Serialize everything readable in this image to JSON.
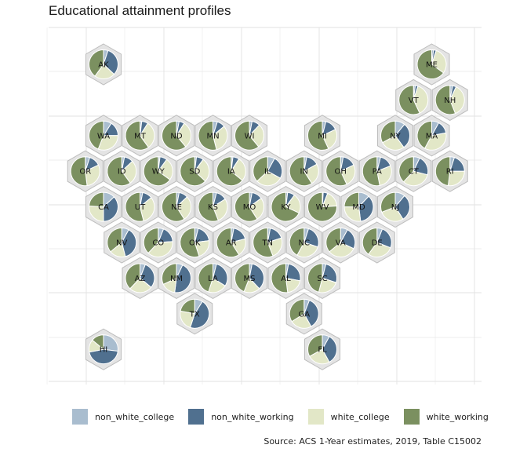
{
  "chart_data": {
    "type": "hexbin map of pie charts",
    "title": "Educational attainment profiles",
    "caption": "Source: ACS 1-Year estimates, 2019, Table C15002",
    "series": [
      {
        "name": "non_white_college",
        "color": "#a9bdcf"
      },
      {
        "name": "non_white_working",
        "color": "#50708f"
      },
      {
        "name": "white_college",
        "color": "#e2e7c7"
      },
      {
        "name": "white_working",
        "color": "#7b9060"
      }
    ],
    "grid": true,
    "legend_position": "bottom",
    "states": [
      {
        "abbr": "AK",
        "col": 0,
        "row": 0,
        "values": [
          5,
          32,
          23,
          40
        ]
      },
      {
        "abbr": "ME",
        "col": 9,
        "row": 0,
        "values": [
          2,
          3,
          30,
          65
        ]
      },
      {
        "abbr": "VT",
        "col": 8.5,
        "row": 1,
        "values": [
          2,
          3,
          38,
          57
        ]
      },
      {
        "abbr": "NH",
        "col": 9.5,
        "row": 1,
        "values": [
          3,
          4,
          37,
          56
        ]
      },
      {
        "abbr": "WA",
        "col": 0,
        "row": 2,
        "values": [
          9,
          16,
          31,
          44
        ]
      },
      {
        "abbr": "MT",
        "col": 1,
        "row": 2,
        "values": [
          2,
          7,
          31,
          60
        ]
      },
      {
        "abbr": "ND",
        "col": 2,
        "row": 2,
        "values": [
          3,
          6,
          30,
          61
        ]
      },
      {
        "abbr": "MN",
        "col": 3,
        "row": 2,
        "values": [
          5,
          9,
          32,
          54
        ]
      },
      {
        "abbr": "WI",
        "col": 4,
        "row": 2,
        "values": [
          3,
          9,
          27,
          61
        ]
      },
      {
        "abbr": "MI",
        "col": 6,
        "row": 2,
        "values": [
          4,
          14,
          25,
          57
        ]
      },
      {
        "abbr": "NY",
        "col": 8,
        "row": 2,
        "values": [
          11,
          29,
          27,
          33
        ]
      },
      {
        "abbr": "MA",
        "col": 9,
        "row": 2,
        "values": [
          8,
          14,
          36,
          42
        ]
      },
      {
        "abbr": "OR",
        "col": -0.5,
        "row": 3,
        "values": [
          5,
          13,
          30,
          52
        ]
      },
      {
        "abbr": "ID",
        "col": 0.5,
        "row": 3,
        "values": [
          3,
          10,
          27,
          60
        ]
      },
      {
        "abbr": "WY",
        "col": 1.5,
        "row": 3,
        "values": [
          2,
          8,
          25,
          65
        ]
      },
      {
        "abbr": "SD",
        "col": 2.5,
        "row": 3,
        "values": [
          2,
          8,
          27,
          63
        ]
      },
      {
        "abbr": "IA",
        "col": 3.5,
        "row": 3,
        "values": [
          2,
          7,
          27,
          64
        ]
      },
      {
        "abbr": "IL",
        "col": 4.5,
        "row": 3,
        "values": [
          8,
          25,
          30,
          37
        ]
      },
      {
        "abbr": "IN",
        "col": 5.5,
        "row": 3,
        "values": [
          3,
          14,
          24,
          59
        ]
      },
      {
        "abbr": "OH",
        "col": 6.5,
        "row": 3,
        "values": [
          3,
          15,
          25,
          57
        ]
      },
      {
        "abbr": "PA",
        "col": 7.5,
        "row": 3,
        "values": [
          4,
          15,
          28,
          53
        ]
      },
      {
        "abbr": "CT",
        "col": 8.5,
        "row": 3,
        "values": [
          7,
          22,
          33,
          38
        ]
      },
      {
        "abbr": "RI",
        "col": 9.5,
        "row": 3,
        "values": [
          5,
          20,
          27,
          48
        ]
      },
      {
        "abbr": "CA",
        "col": 0,
        "row": 4,
        "values": [
          13,
          37,
          26,
          24
        ]
      },
      {
        "abbr": "UT",
        "col": 1,
        "row": 4,
        "values": [
          3,
          11,
          32,
          54
        ]
      },
      {
        "abbr": "NE",
        "col": 2,
        "row": 4,
        "values": [
          3,
          10,
          28,
          59
        ]
      },
      {
        "abbr": "KS",
        "col": 3,
        "row": 4,
        "values": [
          4,
          12,
          28,
          56
        ]
      },
      {
        "abbr": "MO",
        "col": 4,
        "row": 4,
        "values": [
          3,
          12,
          26,
          59
        ]
      },
      {
        "abbr": "KY",
        "col": 5,
        "row": 4,
        "values": [
          2,
          8,
          22,
          68
        ]
      },
      {
        "abbr": "WV",
        "col": 6,
        "row": 4,
        "values": [
          1,
          5,
          18,
          76
        ]
      },
      {
        "abbr": "MD",
        "col": 7,
        "row": 4,
        "values": [
          12,
          36,
          27,
          25
        ]
      },
      {
        "abbr": "NJ",
        "col": 8,
        "row": 4,
        "values": [
          11,
          30,
          28,
          31
        ]
      },
      {
        "abbr": "NV",
        "col": 0.5,
        "row": 5,
        "values": [
          8,
          38,
          18,
          36
        ]
      },
      {
        "abbr": "CO",
        "col": 1.5,
        "row": 5,
        "values": [
          6,
          18,
          38,
          38
        ]
      },
      {
        "abbr": "OK",
        "col": 2.5,
        "row": 5,
        "values": [
          4,
          19,
          22,
          55
        ]
      },
      {
        "abbr": "AR",
        "col": 3.5,
        "row": 5,
        "values": [
          3,
          18,
          20,
          59
        ]
      },
      {
        "abbr": "TN",
        "col": 4.5,
        "row": 5,
        "values": [
          3,
          17,
          24,
          56
        ]
      },
      {
        "abbr": "NC",
        "col": 5.5,
        "row": 5,
        "values": [
          5,
          25,
          28,
          42
        ]
      },
      {
        "abbr": "VA",
        "col": 6.5,
        "row": 5,
        "values": [
          8,
          24,
          32,
          36
        ]
      },
      {
        "abbr": "DE",
        "col": 7.5,
        "row": 5,
        "values": [
          6,
          25,
          29,
          40
        ]
      },
      {
        "abbr": "AZ",
        "col": 1,
        "row": 6,
        "values": [
          6,
          30,
          26,
          38
        ]
      },
      {
        "abbr": "NM",
        "col": 2,
        "row": 6,
        "values": [
          7,
          45,
          16,
          32
        ]
      },
      {
        "abbr": "LA",
        "col": 3,
        "row": 6,
        "values": [
          4,
          30,
          21,
          45
        ]
      },
      {
        "abbr": "MS",
        "col": 4,
        "row": 6,
        "values": [
          3,
          35,
          18,
          44
        ]
      },
      {
        "abbr": "AL",
        "col": 5,
        "row": 6,
        "values": [
          3,
          25,
          20,
          52
        ]
      },
      {
        "abbr": "SC",
        "col": 6,
        "row": 6,
        "values": [
          4,
          26,
          24,
          46
        ]
      },
      {
        "abbr": "TX",
        "col": 2.5,
        "row": 7,
        "values": [
          9,
          46,
          23,
          22
        ]
      },
      {
        "abbr": "GA",
        "col": 5.5,
        "row": 7,
        "values": [
          6,
          36,
          24,
          34
        ]
      },
      {
        "abbr": "HI",
        "col": 0,
        "row": 8,
        "values": [
          27,
          45,
          14,
          14
        ]
      },
      {
        "abbr": "FL",
        "col": 6,
        "row": 8,
        "values": [
          8,
          34,
          25,
          33
        ]
      }
    ]
  }
}
